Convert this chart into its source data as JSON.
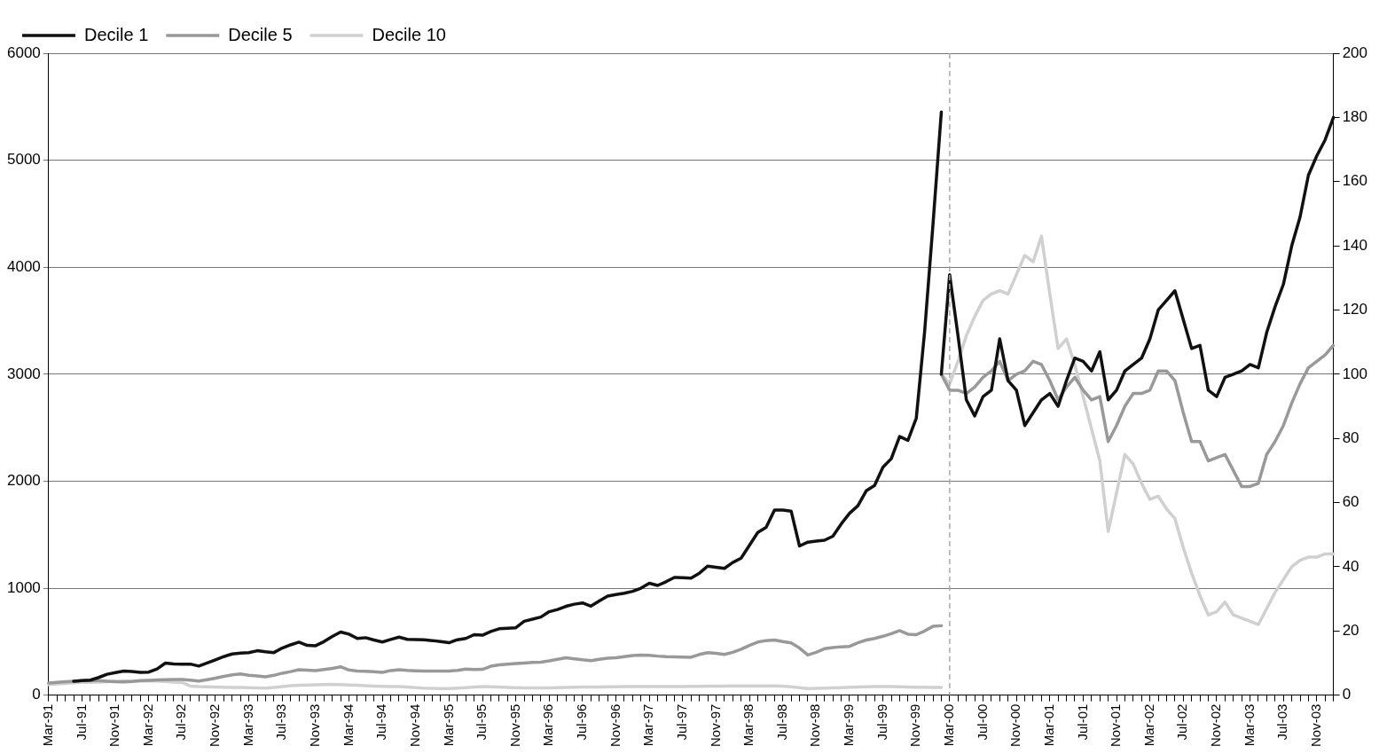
{
  "chart_data": {
    "type": "line",
    "categories": [
      "Mar-91",
      null,
      null,
      null,
      "Jul-91",
      null,
      null,
      null,
      "Nov-91",
      null,
      null,
      null,
      "Mar-92",
      null,
      null,
      null,
      "Jul-92",
      null,
      null,
      null,
      "Nov-92",
      null,
      null,
      null,
      "Mar-93",
      null,
      null,
      null,
      "Jul-93",
      null,
      null,
      null,
      "Nov-93",
      null,
      null,
      null,
      "Mar-94",
      null,
      null,
      null,
      "Jul-94",
      null,
      null,
      null,
      "Nov-94",
      null,
      null,
      null,
      "Mar-95",
      null,
      null,
      null,
      "Jul-95",
      null,
      null,
      null,
      "Nov-95",
      null,
      null,
      null,
      "Mar-96",
      null,
      null,
      null,
      "Jul-96",
      null,
      null,
      null,
      "Nov-96",
      null,
      null,
      null,
      "Mar-97",
      null,
      null,
      null,
      "Jul-97",
      null,
      null,
      null,
      "Nov-97",
      null,
      null,
      null,
      "Mar-98",
      null,
      null,
      null,
      "Jul-98",
      null,
      null,
      null,
      "Nov-98",
      null,
      null,
      null,
      "Mar-99",
      null,
      null,
      null,
      "Jul-99",
      null,
      null,
      null,
      "Nov-99",
      null,
      null,
      null,
      "Mar-00",
      null,
      null,
      null,
      "Jul-00",
      null,
      null,
      null,
      "Nov-00",
      null,
      null,
      null,
      "Mar-01",
      null,
      null,
      null,
      "Jul-01",
      null,
      null,
      null,
      "Nov-01",
      null,
      null,
      null,
      "Mar-02",
      null,
      null,
      null,
      "Jul-02",
      null,
      null,
      null,
      "Nov-02",
      null,
      null,
      null,
      "Mar-03",
      null,
      null,
      null,
      "Jul-03",
      null,
      null,
      null,
      "Nov-03",
      null,
      null
    ],
    "series": [
      {
        "name": "Decile 1",
        "color": "#111111",
        "values": [
          null,
          null,
          null,
          130,
          135,
          140,
          165,
          195,
          210,
          225,
          220,
          212,
          215,
          245,
          300,
          292,
          290,
          290,
          272,
          300,
          330,
          360,
          385,
          392,
          397,
          415,
          405,
          398,
          440,
          470,
          495,
          465,
          462,
          500,
          548,
          590,
          570,
          530,
          537,
          515,
          497,
          520,
          542,
          522,
          520,
          517,
          510,
          500,
          490,
          518,
          530,
          565,
          560,
          595,
          620,
          625,
          630,
          690,
          710,
          730,
          780,
          800,
          830,
          850,
          862,
          832,
          880,
          925,
          940,
          952,
          970,
          1000,
          1046,
          1025,
          1060,
          1100,
          1098,
          1094,
          1140,
          1206,
          1195,
          1185,
          1240,
          1280,
          1400,
          1520,
          1568,
          1729,
          1730,
          1720,
          1394,
          1430,
          1440,
          1448,
          1485,
          1600,
          1700,
          1770,
          1910,
          1960,
          2130,
          2210,
          2418,
          2381,
          2590,
          3400,
          4400,
          5450,
          null,
          null,
          null,
          null,
          null,
          null,
          null,
          null,
          null,
          null,
          null,
          null,
          null,
          null,
          null,
          null,
          null,
          null,
          null,
          null,
          null,
          null,
          null,
          null,
          null,
          null,
          null,
          null,
          null,
          null,
          null,
          null,
          null,
          null,
          null,
          null,
          null,
          null,
          null,
          null,
          null,
          null,
          null,
          null,
          null,
          null,
          null
        ]
      },
      {
        "name": "Decile 5",
        "color": "#999999",
        "values": [
          114,
          120,
          125,
          130,
          135,
          138,
          135,
          130,
          126,
          124,
          128,
          135,
          138,
          142,
          145,
          146,
          146,
          140,
          132,
          145,
          159,
          175,
          190,
          198,
          185,
          180,
          172,
          185,
          205,
          220,
          238,
          234,
          230,
          240,
          250,
          265,
          235,
          225,
          222,
          218,
          212,
          230,
          238,
          232,
          228,
          225,
          225,
          225,
          225,
          232,
          243,
          240,
          241,
          270,
          283,
          290,
          295,
          300,
          305,
          308,
          320,
          335,
          349,
          340,
          330,
          322,
          335,
          345,
          349,
          360,
          370,
          375,
          372,
          365,
          360,
          358,
          356,
          354,
          380,
          397,
          390,
          381,
          400,
          429,
          465,
          496,
          510,
          515,
          500,
          488,
          440,
          375,
          400,
          434,
          445,
          452,
          456,
          490,
          515,
          530,
          550,
          575,
          603,
          570,
          565,
          600,
          643,
          649,
          null,
          null,
          null,
          null,
          null,
          null,
          null,
          null,
          null,
          null,
          null,
          null,
          null,
          null,
          null,
          null,
          null,
          null,
          null,
          null,
          null,
          null,
          null,
          null,
          null,
          null,
          null,
          null,
          null,
          null,
          null,
          null,
          null,
          null,
          null,
          null,
          null,
          null,
          null,
          null,
          null,
          null,
          null,
          null,
          null,
          null,
          null
        ]
      },
      {
        "name": "Decile 10",
        "color": "#d0d0d0",
        "values": [
          98,
          105,
          110,
          115,
          119,
          119,
          122,
          126,
          130,
          132,
          132,
          132,
          132,
          132,
          128,
          122,
          119,
          85,
          79,
          77,
          75,
          73,
          72,
          71,
          70,
          68,
          66,
          72,
          80,
          88,
          93,
          95,
          97,
          99,
          100,
          98,
          95,
          92,
          88,
          85,
          82,
          80,
          79,
          75,
          70,
          66,
          64,
          62,
          61,
          65,
          70,
          75,
          79,
          77,
          75,
          72,
          70,
          68,
          67,
          67,
          68,
          70,
          72,
          74,
          75,
          75,
          76,
          77,
          78,
          79,
          80,
          80,
          80,
          80,
          80,
          80,
          81,
          82,
          83,
          84,
          85,
          85,
          86,
          86,
          86,
          86,
          86,
          86,
          84,
          78,
          70,
          62,
          64,
          66,
          68,
          70,
          73,
          76,
          78,
          80,
          80,
          79,
          78,
          76,
          74,
          73,
          72,
          72,
          null,
          null,
          null,
          null,
          null,
          null,
          null,
          null,
          null,
          null,
          null,
          null,
          null,
          null,
          null,
          null,
          null,
          null,
          null,
          null,
          null,
          null,
          null,
          null,
          null,
          null,
          null,
          null,
          null,
          null,
          null,
          null,
          null,
          null,
          null,
          null,
          null,
          null,
          null,
          null,
          null,
          null,
          null,
          null,
          null,
          null,
          null
        ]
      },
      {
        "color": "#111111",
        "axis": "y2",
        "values": [
          null,
          null,
          null,
          null,
          null,
          null,
          null,
          null,
          null,
          null,
          null,
          null,
          null,
          null,
          null,
          null,
          null,
          null,
          null,
          null,
          null,
          null,
          null,
          null,
          null,
          null,
          null,
          null,
          null,
          null,
          null,
          null,
          null,
          null,
          null,
          null,
          null,
          null,
          null,
          null,
          null,
          null,
          null,
          null,
          null,
          null,
          null,
          null,
          null,
          null,
          null,
          null,
          null,
          null,
          null,
          null,
          null,
          null,
          null,
          null,
          null,
          null,
          null,
          null,
          null,
          null,
          null,
          null,
          null,
          null,
          null,
          null,
          null,
          null,
          null,
          null,
          null,
          null,
          null,
          null,
          null,
          null,
          null,
          null,
          null,
          null,
          null,
          null,
          null,
          null,
          null,
          null,
          null,
          null,
          null,
          null,
          null,
          null,
          null,
          null,
          null,
          null,
          null,
          null,
          null,
          null,
          null,
          100,
          131,
          112,
          92,
          87,
          93,
          95,
          111,
          98,
          95,
          84,
          88,
          92,
          94,
          90,
          98,
          105,
          104,
          101,
          107,
          92,
          95,
          101,
          103,
          105,
          111,
          120,
          123,
          126,
          117,
          108,
          109,
          95,
          93,
          99,
          100,
          101,
          103,
          102,
          113,
          121,
          128,
          140,
          149,
          162,
          168,
          173,
          180
        ]
      },
      {
        "color": "#999999",
        "axis": "y2",
        "values": [
          null,
          null,
          null,
          null,
          null,
          null,
          null,
          null,
          null,
          null,
          null,
          null,
          null,
          null,
          null,
          null,
          null,
          null,
          null,
          null,
          null,
          null,
          null,
          null,
          null,
          null,
          null,
          null,
          null,
          null,
          null,
          null,
          null,
          null,
          null,
          null,
          null,
          null,
          null,
          null,
          null,
          null,
          null,
          null,
          null,
          null,
          null,
          null,
          null,
          null,
          null,
          null,
          null,
          null,
          null,
          null,
          null,
          null,
          null,
          null,
          null,
          null,
          null,
          null,
          null,
          null,
          null,
          null,
          null,
          null,
          null,
          null,
          null,
          null,
          null,
          null,
          null,
          null,
          null,
          null,
          null,
          null,
          null,
          null,
          null,
          null,
          null,
          null,
          null,
          null,
          null,
          null,
          null,
          null,
          null,
          null,
          null,
          null,
          null,
          null,
          null,
          null,
          null,
          null,
          null,
          null,
          null,
          100,
          95,
          95,
          94,
          96,
          99,
          101,
          104,
          98,
          100,
          101,
          104,
          103,
          98,
          92,
          96,
          99,
          95,
          92,
          93,
          79,
          84,
          90,
          94,
          94,
          95,
          101,
          101,
          98,
          88,
          79,
          79,
          73,
          74,
          75,
          70,
          65,
          65,
          66,
          75,
          79,
          84,
          91,
          97,
          102,
          104,
          106,
          109
        ]
      },
      {
        "color": "#d0d0d0",
        "axis": "y2",
        "values": [
          null,
          null,
          null,
          null,
          null,
          null,
          null,
          null,
          null,
          null,
          null,
          null,
          null,
          null,
          null,
          null,
          null,
          null,
          null,
          null,
          null,
          null,
          null,
          null,
          null,
          null,
          null,
          null,
          null,
          null,
          null,
          null,
          null,
          null,
          null,
          null,
          null,
          null,
          null,
          null,
          null,
          null,
          null,
          null,
          null,
          null,
          null,
          null,
          null,
          null,
          null,
          null,
          null,
          null,
          null,
          null,
          null,
          null,
          null,
          null,
          null,
          null,
          null,
          null,
          null,
          null,
          null,
          null,
          null,
          null,
          null,
          null,
          null,
          null,
          null,
          null,
          null,
          null,
          null,
          null,
          null,
          null,
          null,
          null,
          null,
          null,
          null,
          null,
          null,
          null,
          null,
          null,
          null,
          null,
          null,
          null,
          null,
          null,
          null,
          null,
          null,
          null,
          null,
          null,
          null,
          null,
          null,
          100,
          97,
          104,
          112,
          118,
          123,
          125,
          126,
          125,
          131,
          137,
          135,
          143,
          125,
          108,
          111,
          103,
          93,
          83,
          73,
          51,
          63,
          75,
          72,
          66,
          61,
          62,
          58,
          55,
          46,
          38,
          31,
          25,
          26,
          29,
          25,
          24,
          23,
          22,
          27,
          32,
          36,
          40,
          42,
          43,
          43,
          44,
          44
        ]
      }
    ],
    "ylim": [
      0,
      6000
    ],
    "yticks": [
      0,
      1000,
      2000,
      3000,
      4000,
      5000,
      6000
    ],
    "y2lim": [
      0,
      200
    ],
    "y2ticks": [
      0,
      20,
      40,
      60,
      80,
      100,
      120,
      140,
      160,
      180,
      200
    ],
    "ref_lines": [
      {
        "axis": "x",
        "value": "Mar-00",
        "color": "#aaaaaa",
        "line_style": "dashed"
      }
    ],
    "grid": "y",
    "legend": "top left",
    "marker": "none"
  }
}
